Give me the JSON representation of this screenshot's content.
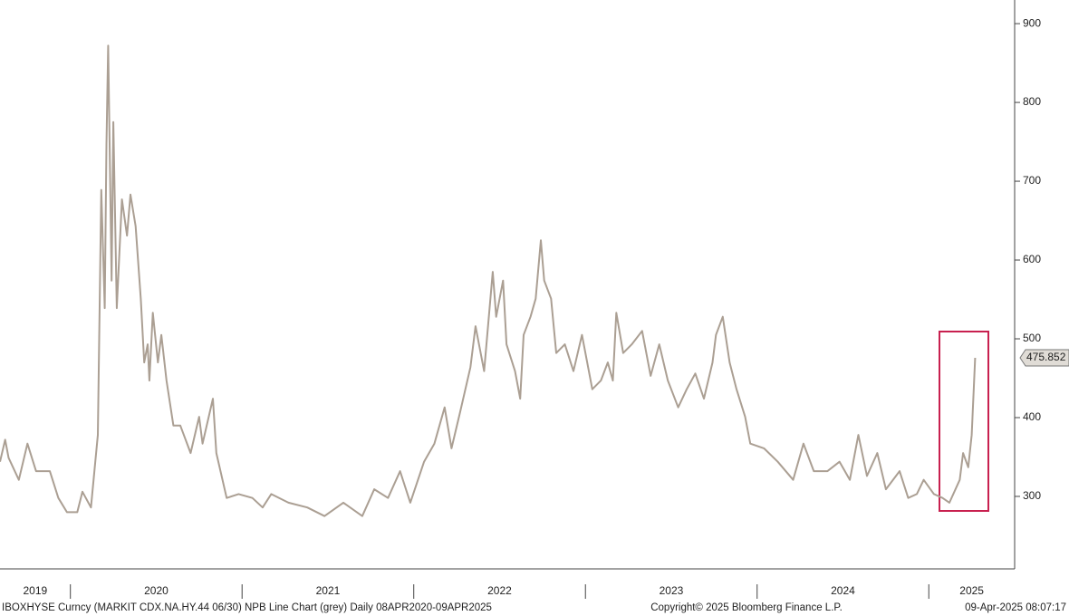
{
  "chart_data": {
    "type": "line",
    "color": "#ab9f93",
    "xlim": [
      2019.59,
      2025.5
    ],
    "xticks": [
      2019,
      2020,
      2021,
      2022,
      2023,
      2024,
      2025
    ],
    "ylim": [
      208,
      930
    ],
    "yticks": [
      300,
      400,
      500,
      600,
      700,
      800,
      900
    ],
    "last_value": 475.852,
    "x": [
      2019.59,
      2019.62,
      2019.64,
      2019.7,
      2019.75,
      2019.8,
      2019.88,
      2019.93,
      2019.98,
      2020.04,
      2020.07,
      2020.12,
      2020.14,
      2020.16,
      2020.18,
      2020.2,
      2020.21,
      2020.22,
      2020.24,
      2020.25,
      2020.27,
      2020.3,
      2020.33,
      2020.35,
      2020.38,
      2020.41,
      2020.43,
      2020.45,
      2020.46,
      2020.48,
      2020.51,
      2020.53,
      2020.56,
      2020.6,
      2020.64,
      2020.7,
      2020.75,
      2020.77,
      2020.83,
      2020.85,
      2020.91,
      2020.98,
      2021.06,
      2021.12,
      2021.17,
      2021.27,
      2021.38,
      2021.48,
      2021.59,
      2021.7,
      2021.77,
      2021.85,
      2021.92,
      2021.98,
      2022.06,
      2022.12,
      2022.18,
      2022.22,
      2022.27,
      2022.33,
      2022.36,
      2022.41,
      2022.46,
      2022.48,
      2022.52,
      2022.54,
      2022.59,
      2022.62,
      2022.64,
      2022.68,
      2022.71,
      2022.74,
      2022.76,
      2022.8,
      2022.83,
      2022.88,
      2022.93,
      2022.98,
      2023.04,
      2023.09,
      2023.13,
      2023.16,
      2023.18,
      2023.22,
      2023.27,
      2023.33,
      2023.38,
      2023.43,
      2023.48,
      2023.54,
      2023.59,
      2023.64,
      2023.69,
      2023.74,
      2023.76,
      2023.8,
      2023.84,
      2023.88,
      2023.93,
      2023.96,
      2024.04,
      2024.12,
      2024.21,
      2024.27,
      2024.33,
      2024.41,
      2024.48,
      2024.54,
      2024.59,
      2024.64,
      2024.7,
      2024.75,
      2024.83,
      2024.88,
      2024.93,
      2024.97,
      2025.03,
      2025.08,
      2025.12,
      2025.18,
      2025.2,
      2025.23,
      2025.25,
      2025.27
    ],
    "values": [
      344,
      372,
      349,
      321,
      367,
      332,
      332,
      298,
      280,
      280,
      306,
      286,
      332,
      378,
      689,
      539,
      746,
      872,
      574,
      775,
      539,
      677,
      631,
      683,
      643,
      551,
      470,
      493,
      447,
      533,
      470,
      505,
      447,
      390,
      390,
      355,
      401,
      367,
      424,
      355,
      298,
      303,
      298,
      286,
      303,
      292,
      286,
      275,
      292,
      275,
      309,
      298,
      332,
      292,
      344,
      367,
      413,
      361,
      407,
      464,
      516,
      459,
      585,
      528,
      574,
      493,
      459,
      424,
      505,
      528,
      551,
      625,
      574,
      551,
      482,
      493,
      459,
      505,
      436,
      447,
      470,
      447,
      533,
      482,
      493,
      510,
      453,
      493,
      447,
      413,
      436,
      456,
      424,
      470,
      505,
      528,
      470,
      436,
      401,
      367,
      361,
      344,
      321,
      367,
      332,
      332,
      344,
      321,
      378,
      326,
      355,
      309,
      332,
      298,
      303,
      321,
      303,
      298,
      292,
      321,
      355,
      337,
      378,
      475.852
    ],
    "footer": {
      "left": "IBOXHYSE Curncy (MARKIT CDX.NA.HY.44 06/30) NPB Line Chart (grey)  Daily 08APR2020-09APR2025",
      "center": "Copyright© 2025 Bloomberg Finance L.P.",
      "right": "09-Apr-2025 08:07:17"
    }
  }
}
